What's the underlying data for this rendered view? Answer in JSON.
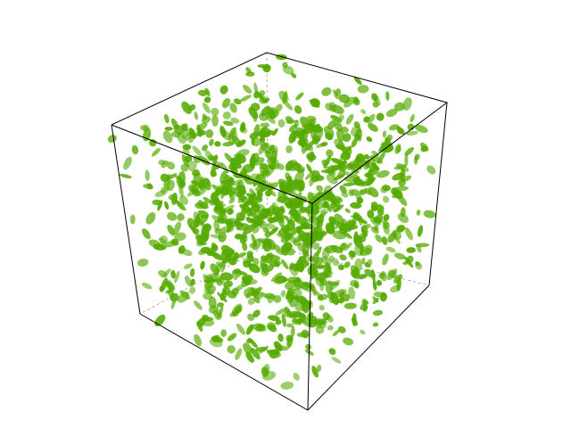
{
  "scene": {
    "color": "#55aa00"
  }
}
